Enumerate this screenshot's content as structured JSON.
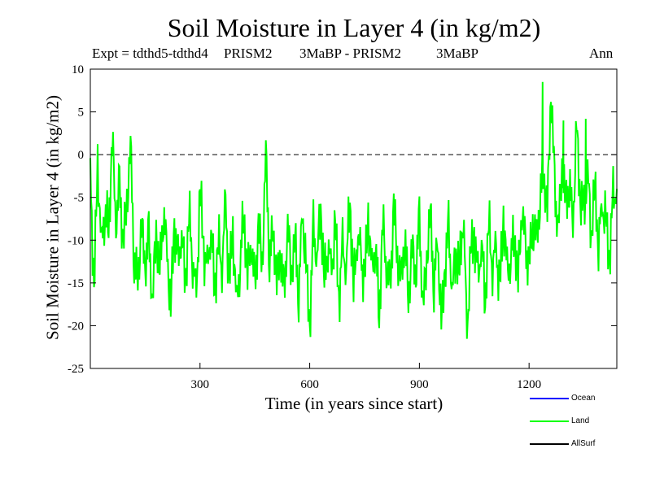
{
  "chart_data": {
    "type": "line",
    "title": "Soil Moisture in Layer 4 (in kg/m2)",
    "subtitle": {
      "expt": "Expt = tdthd5-tdthd4",
      "label1": "PRISM2",
      "label2": "3MaBP - PRISM2",
      "label3": "3MaBP",
      "period": "Ann"
    },
    "xlabel": "Time (in years since start)",
    "ylabel": "Soil Moisture in Layer 4 (in kg/m2)",
    "xlim": [
      0,
      1440
    ],
    "ylim": [
      -25,
      10
    ],
    "xticks": [
      300,
      600,
      900,
      1200
    ],
    "yticks": [
      10,
      5,
      0,
      -5,
      -10,
      -15,
      -20,
      -25
    ],
    "reference_line": 0,
    "series": [
      {
        "name": "Land",
        "color": "#00ff00",
        "x": [
          0,
          10,
          20,
          30,
          40,
          50,
          60,
          70,
          80,
          90,
          100,
          110,
          120,
          130,
          140,
          150,
          160,
          170,
          180,
          190,
          200,
          210,
          220,
          230,
          240,
          250,
          260,
          270,
          280,
          290,
          300,
          310,
          320,
          330,
          340,
          350,
          360,
          370,
          380,
          390,
          400,
          410,
          420,
          430,
          440,
          450,
          460,
          470,
          480,
          490,
          500,
          510,
          520,
          530,
          540,
          550,
          560,
          570,
          580,
          590,
          600,
          610,
          620,
          630,
          640,
          650,
          660,
          670,
          680,
          690,
          700,
          710,
          720,
          730,
          740,
          750,
          760,
          770,
          780,
          790,
          800,
          810,
          820,
          830,
          840,
          850,
          860,
          870,
          880,
          890,
          900,
          910,
          920,
          930,
          940,
          950,
          960,
          970,
          980,
          990,
          1000,
          1010,
          1020,
          1030,
          1040,
          1050,
          1060,
          1070,
          1080,
          1090,
          1100,
          1110,
          1120,
          1130,
          1140,
          1150,
          1160,
          1170,
          1180,
          1190,
          1200,
          1210,
          1220,
          1230,
          1240,
          1250,
          1260,
          1270,
          1280,
          1290,
          1300,
          1310,
          1320,
          1330,
          1340,
          1350,
          1360,
          1370,
          1380,
          1390,
          1400,
          1410,
          1420,
          1430,
          1440
        ],
        "values": [
          -2,
          -16,
          -1,
          -11,
          -6,
          -9,
          2,
          -8,
          -4,
          -10,
          -6,
          1,
          -12,
          -15,
          -8,
          -13,
          -10,
          -17,
          -9,
          -14,
          -6,
          -12,
          -18,
          -8,
          -13,
          -9,
          -15,
          -7,
          -12,
          -17,
          -4,
          -11,
          -14,
          -8,
          -16,
          -10,
          -13,
          -6,
          -15,
          -9,
          -18,
          -12,
          -7,
          -14,
          -10,
          -16,
          -8,
          -13,
          0,
          -12,
          -9,
          -15,
          -11,
          -17,
          -8,
          -14,
          -10,
          -16,
          -7,
          -13,
          -20,
          -9,
          -12,
          -6,
          -15,
          -10,
          -14,
          -8,
          -17,
          -11,
          -13,
          -5,
          -16,
          -9,
          -12,
          -15,
          -7,
          -14,
          -10,
          -19,
          -8,
          -13,
          -16,
          -6,
          -12,
          -15,
          -9,
          -17,
          -11,
          -14,
          -8,
          -18,
          -12,
          -7,
          -15,
          -10,
          -20,
          -13,
          -9,
          -16,
          -11,
          -14,
          -6,
          -21,
          -12,
          -9,
          -15,
          -10,
          -17,
          -8,
          -13,
          -11,
          -16,
          -7,
          -14,
          -12,
          -9,
          -15,
          -6,
          -11,
          -13,
          -8,
          -10,
          -5,
          -2,
          -7,
          8,
          -4,
          -9,
          -1,
          -6,
          -3,
          -8,
          3,
          -5,
          -7,
          -2,
          -9,
          -4,
          -10,
          -6,
          -8,
          -12,
          -5,
          -4
        ],
        "spikes": [
          {
            "x": 1237,
            "value": 8.5
          },
          {
            "x": 1294,
            "value": 4
          },
          {
            "x": 1355,
            "value": 4.2
          }
        ]
      }
    ],
    "legend": [
      {
        "name": "Ocean",
        "color": "#0000ff"
      },
      {
        "name": "Land",
        "color": "#00ff00"
      },
      {
        "name": "AllSurf",
        "color": "#000000"
      }
    ]
  }
}
